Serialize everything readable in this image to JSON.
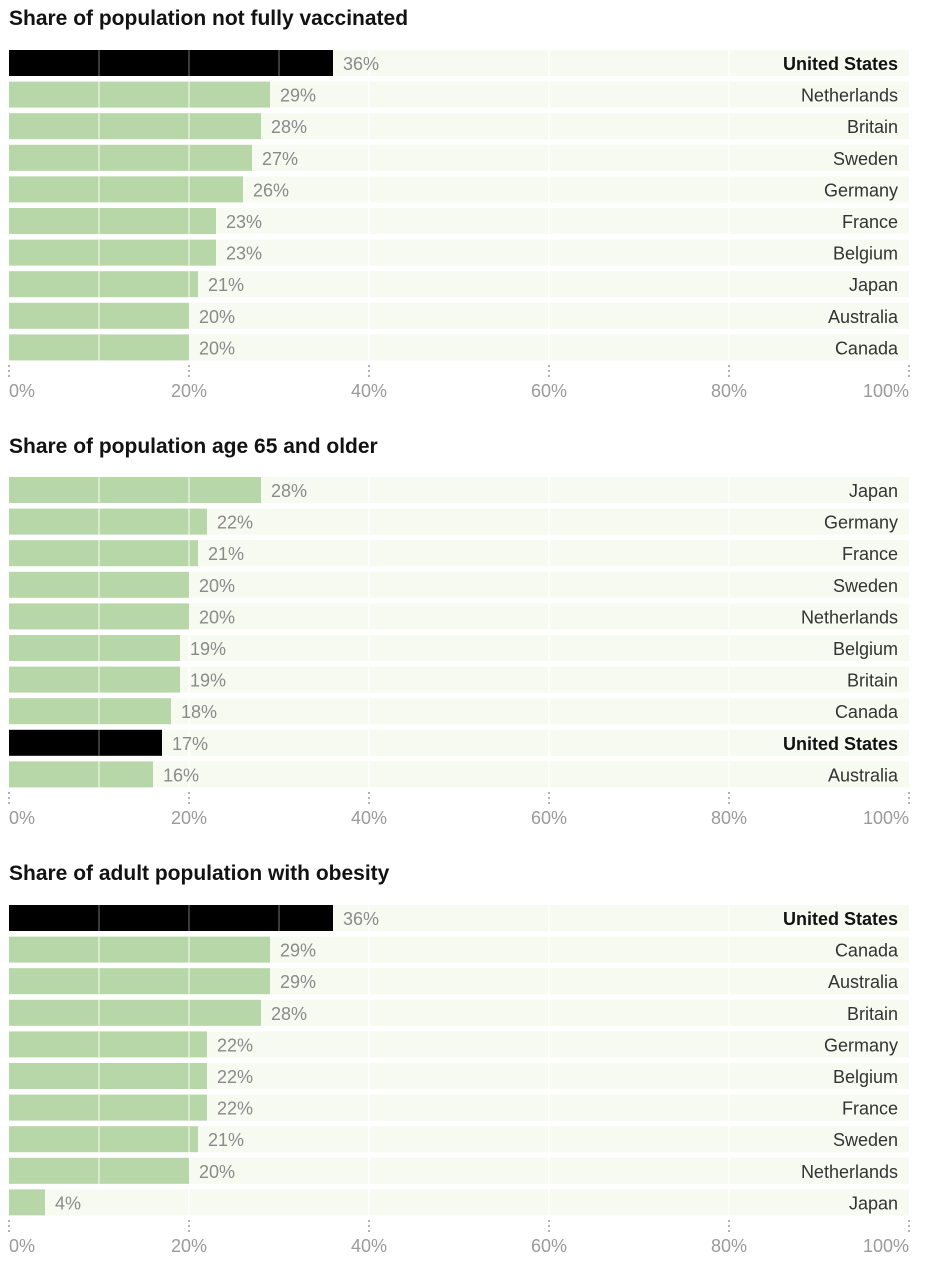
{
  "colors": {
    "row_background": "#f6faf1",
    "bar": "#b8d7a9",
    "highlight_bar": "#000000",
    "gridline_on_bar": "#ffffff",
    "gridline_on_background": "#ffffff"
  },
  "chart_data": [
    {
      "type": "bar",
      "orientation": "horizontal",
      "title": "Share of population not fully vaccinated",
      "categories": [
        "United States",
        "Netherlands",
        "Britain",
        "Sweden",
        "Germany",
        "France",
        "Belgium",
        "Japan",
        "Australia",
        "Canada"
      ],
      "values": [
        36,
        29,
        28,
        27,
        26,
        23,
        23,
        21,
        20,
        20
      ],
      "value_labels": [
        "36%",
        "29%",
        "28%",
        "27%",
        "26%",
        "23%",
        "23%",
        "21%",
        "20%",
        "20%"
      ],
      "highlight": "United States",
      "xlim": [
        0,
        100
      ],
      "xticks": [
        0,
        20,
        40,
        60,
        80,
        100
      ],
      "xtick_labels": [
        "0%",
        "20%",
        "40%",
        "60%",
        "80%",
        "100%"
      ],
      "grid": true,
      "legend": "none"
    },
    {
      "type": "bar",
      "orientation": "horizontal",
      "title": "Share of population age 65 and older",
      "categories": [
        "Japan",
        "Germany",
        "France",
        "Sweden",
        "Netherlands",
        "Belgium",
        "Britain",
        "Canada",
        "United States",
        "Australia"
      ],
      "values": [
        28,
        22,
        21,
        20,
        20,
        19,
        19,
        18,
        17,
        16
      ],
      "value_labels": [
        "28%",
        "22%",
        "21%",
        "20%",
        "20%",
        "19%",
        "19%",
        "18%",
        "17%",
        "16%"
      ],
      "highlight": "United States",
      "xlim": [
        0,
        100
      ],
      "xticks": [
        0,
        20,
        40,
        60,
        80,
        100
      ],
      "xtick_labels": [
        "0%",
        "20%",
        "40%",
        "60%",
        "80%",
        "100%"
      ],
      "grid": true,
      "legend": "none"
    },
    {
      "type": "bar",
      "orientation": "horizontal",
      "title": "Share of adult population with obesity",
      "categories": [
        "United States",
        "Canada",
        "Australia",
        "Britain",
        "Germany",
        "Belgium",
        "France",
        "Sweden",
        "Netherlands",
        "Japan"
      ],
      "values": [
        36,
        29,
        29,
        28,
        22,
        22,
        22,
        21,
        20,
        4
      ],
      "value_labels": [
        "36%",
        "29%",
        "29%",
        "28%",
        "22%",
        "22%",
        "22%",
        "21%",
        "20%",
        "4%"
      ],
      "highlight": "United States",
      "xlim": [
        0,
        100
      ],
      "xticks": [
        0,
        20,
        40,
        60,
        80,
        100
      ],
      "xtick_labels": [
        "0%",
        "20%",
        "40%",
        "60%",
        "80%",
        "100%"
      ],
      "grid": true,
      "legend": "none"
    }
  ]
}
